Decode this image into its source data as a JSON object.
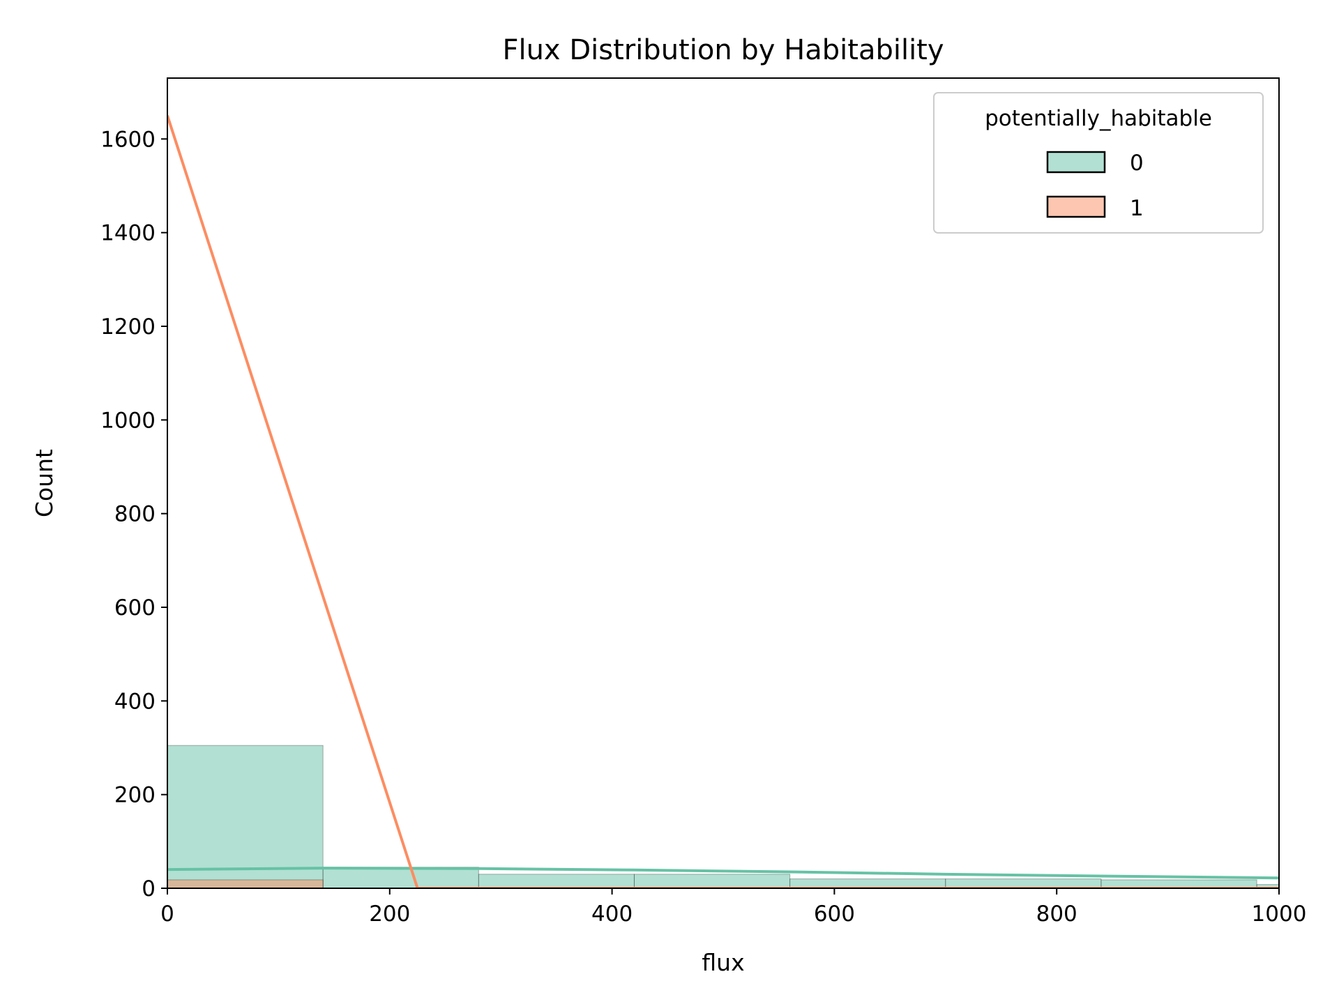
{
  "chart_data": {
    "type": "bar",
    "title": "Flux Distribution by Habitability",
    "xlabel": "flux",
    "ylabel": "Count",
    "xlim": [
      0,
      1000
    ],
    "ylim": [
      0,
      1730
    ],
    "x_ticks": [
      "0",
      "200",
      "400",
      "600",
      "800",
      "1000"
    ],
    "y_ticks": [
      "0",
      "200",
      "400",
      "600",
      "800",
      "1000",
      "1200",
      "1400",
      "1600"
    ],
    "grid": false,
    "legend": {
      "title": "potentially_habitable",
      "placement": "top-right",
      "entries": [
        "0",
        "1"
      ]
    },
    "bin_edges": [
      0,
      140,
      280,
      420,
      560,
      700,
      840,
      980,
      1120
    ],
    "series": [
      {
        "name": "0",
        "color": "#66c2a5",
        "counts": [
          305,
          45,
          30,
          30,
          20,
          20,
          18,
          8
        ],
        "kde": {
          "x": [
            0,
            140,
            280,
            420,
            560,
            700,
            840,
            1000
          ],
          "y": [
            40,
            43,
            42,
            39,
            35,
            30,
            26,
            22
          ]
        }
      },
      {
        "name": "1",
        "color": "#fc8d62",
        "counts": [
          18,
          0,
          0,
          0,
          0,
          0,
          0,
          0
        ],
        "kde": {
          "x": [
            0,
            225,
            1000
          ],
          "y": [
            1650,
            0,
            0
          ]
        }
      }
    ]
  }
}
